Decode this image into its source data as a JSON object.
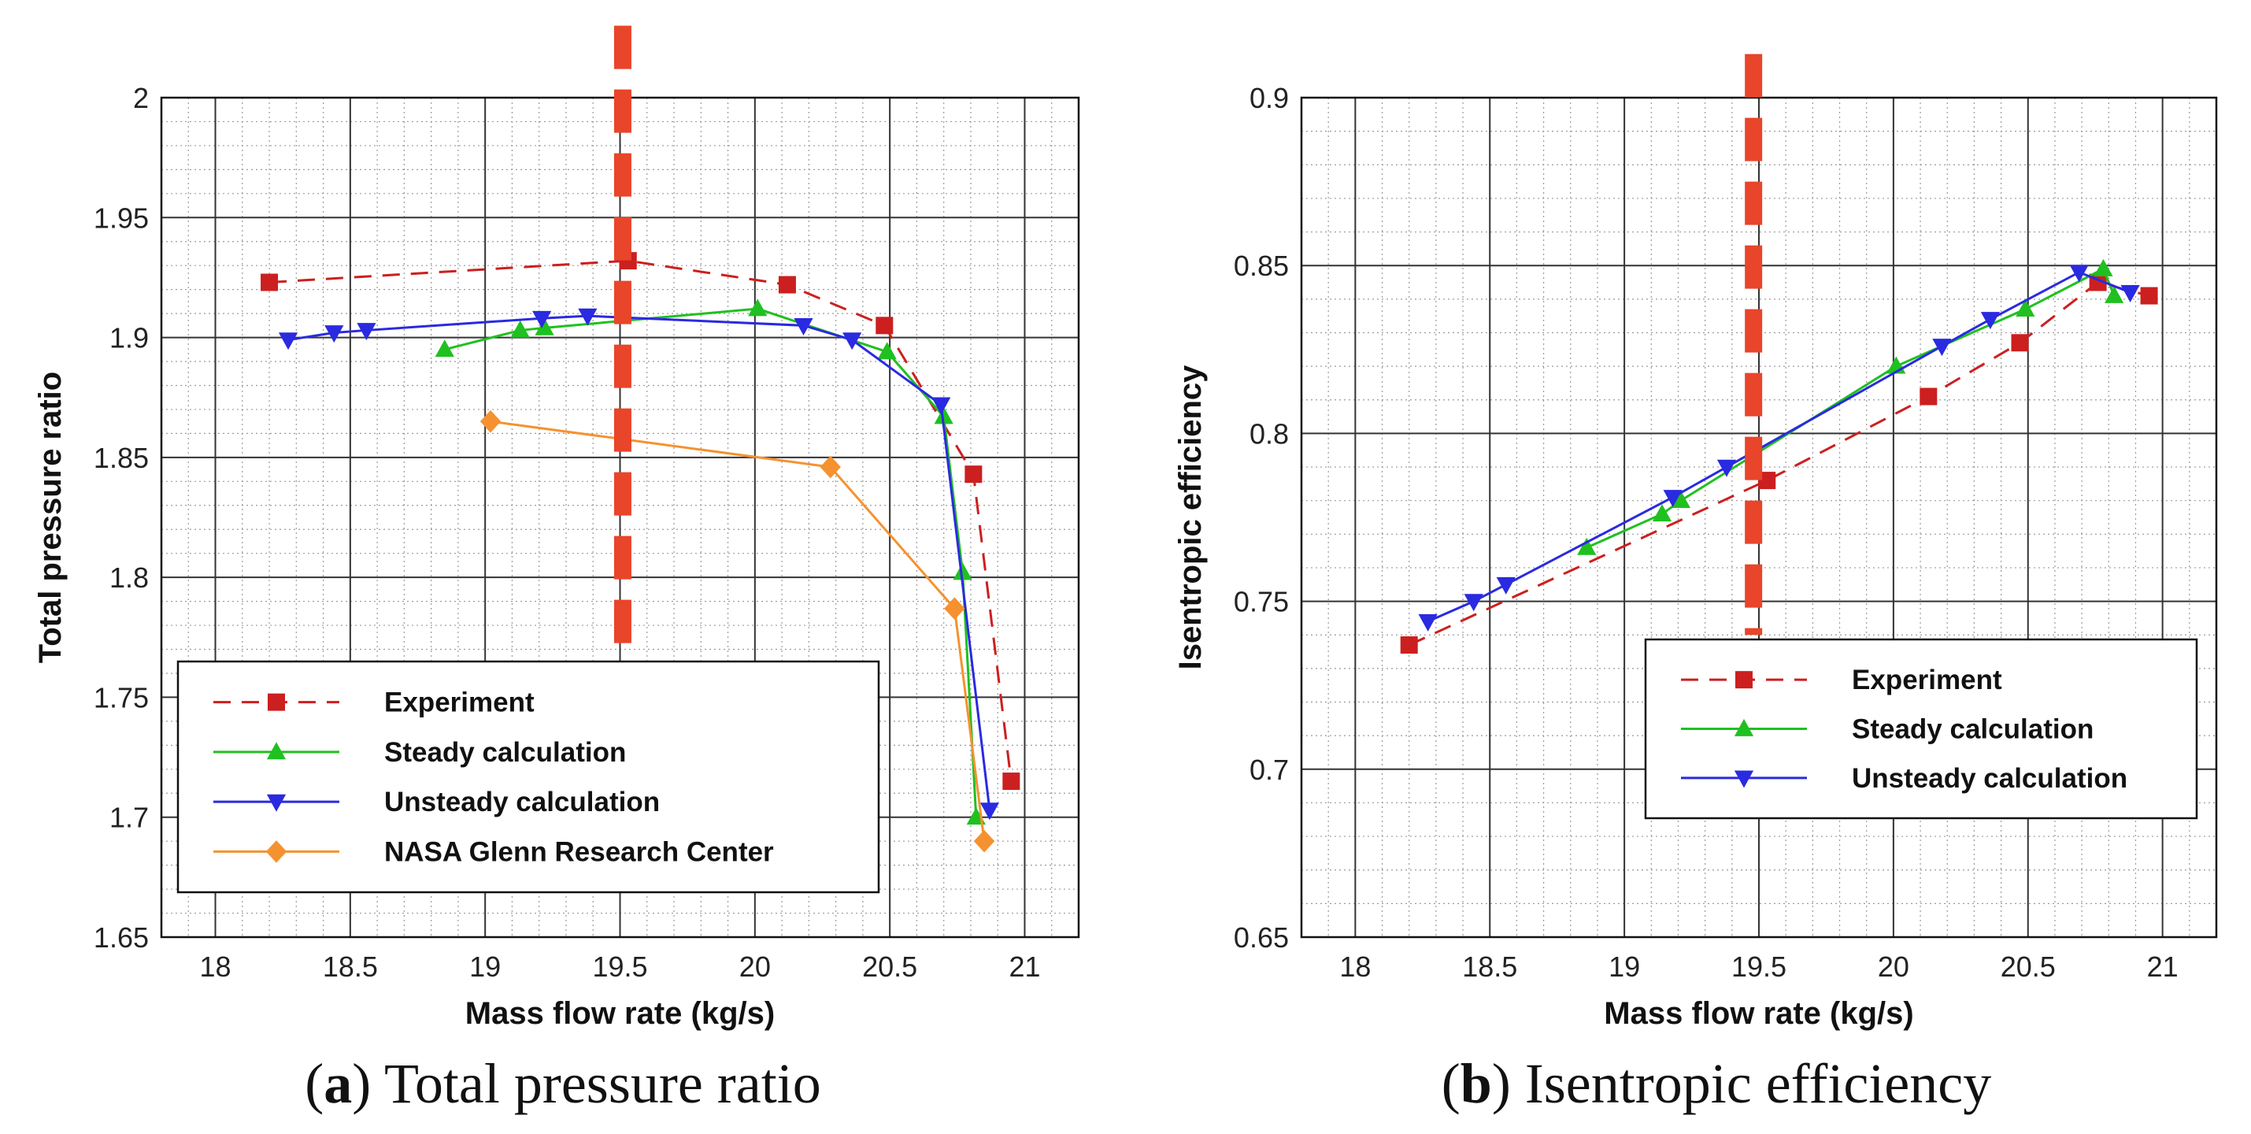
{
  "chart_data": [
    {
      "type": "line",
      "panel_letter": "a",
      "caption": "Total pressure ratio",
      "xlabel": "Mass flow rate (kg/s)",
      "ylabel": "Total pressure ratio",
      "xlim": [
        17.8,
        21.2
      ],
      "ylim": [
        1.65,
        2.0
      ],
      "xticks": [
        18,
        18.5,
        19,
        19.5,
        20,
        20.5,
        21
      ],
      "yticks": [
        1.65,
        1.7,
        1.75,
        1.8,
        1.85,
        1.9,
        1.95,
        2
      ],
      "xtick_labels": [
        "18",
        "18.5",
        "19",
        "19.5",
        "20",
        "20.5",
        "21"
      ],
      "ytick_labels": [
        "1.65",
        "1.7",
        "1.75",
        "1.8",
        "1.85",
        "1.9",
        "1.95",
        "2"
      ],
      "grid": true,
      "vline": {
        "x": 19.51,
        "y_from": 1.77,
        "y_to": 2.03,
        "color": "#e8452a"
      },
      "legend_position": "bottom-left",
      "series": [
        {
          "name": "Experiment",
          "color": "#cc1f1f",
          "marker": "square",
          "dashed": true,
          "x": [
            18.2,
            19.53,
            20.12,
            20.48,
            20.81,
            20.95
          ],
          "y": [
            1.923,
            1.932,
            1.922,
            1.905,
            1.843,
            1.715
          ]
        },
        {
          "name": "Steady calculation",
          "color": "#20c020",
          "marker": "triangle-up",
          "dashed": false,
          "x": [
            18.85,
            19.13,
            19.22,
            20.01,
            20.49,
            20.7,
            20.77,
            20.82
          ],
          "y": [
            1.895,
            1.903,
            1.904,
            1.912,
            1.894,
            1.867,
            1.802,
            1.7
          ]
        },
        {
          "name": "Unsteady calculation",
          "color": "#2a2ae0",
          "marker": "triangle-down",
          "dashed": false,
          "x": [
            18.27,
            18.44,
            18.56,
            19.21,
            19.38,
            20.18,
            20.36,
            20.69,
            20.87
          ],
          "y": [
            1.899,
            1.902,
            1.903,
            1.908,
            1.909,
            1.905,
            1.899,
            1.872,
            1.703
          ]
        },
        {
          "name": "NASA Glenn Research Center",
          "color": "#f5922f",
          "marker": "diamond",
          "dashed": false,
          "x": [
            19.02,
            20.28,
            20.74,
            20.85
          ],
          "y": [
            1.865,
            1.846,
            1.787,
            1.69
          ]
        }
      ]
    },
    {
      "type": "line",
      "panel_letter": "b",
      "caption": "Isentropic efficiency",
      "xlabel": "Mass flow rate (kg/s)",
      "ylabel": "Isentropic efficiency",
      "xlim": [
        17.8,
        21.2
      ],
      "ylim": [
        0.65,
        0.9
      ],
      "xticks": [
        18,
        18.5,
        19,
        19.5,
        20,
        20.5,
        21
      ],
      "yticks": [
        0.65,
        0.7,
        0.75,
        0.8,
        0.85,
        0.9
      ],
      "xtick_labels": [
        "18",
        "18.5",
        "19",
        "19.5",
        "20",
        "20.5",
        "21"
      ],
      "ytick_labels": [
        "0.65",
        "0.7",
        "0.75",
        "0.8",
        "0.85",
        "0.9"
      ],
      "grid": true,
      "vline": {
        "x": 19.48,
        "y_from": 0.74,
        "y_to": 0.913,
        "color": "#e8452a"
      },
      "legend_position": "bottom-right",
      "series": [
        {
          "name": "Experiment",
          "color": "#cc1f1f",
          "marker": "square",
          "dashed": true,
          "x": [
            18.2,
            19.53,
            20.13,
            20.47,
            20.76,
            20.95
          ],
          "y": [
            0.737,
            0.786,
            0.811,
            0.827,
            0.845,
            0.841
          ]
        },
        {
          "name": "Steady calculation",
          "color": "#20c020",
          "marker": "triangle-up",
          "dashed": false,
          "x": [
            18.86,
            19.14,
            19.21,
            20.01,
            20.49,
            20.78,
            20.82
          ],
          "y": [
            0.766,
            0.776,
            0.78,
            0.82,
            0.837,
            0.849,
            0.841
          ]
        },
        {
          "name": "Unsteady calculation",
          "color": "#2a2ae0",
          "marker": "triangle-down",
          "dashed": false,
          "x": [
            18.27,
            18.44,
            18.56,
            19.18,
            19.38,
            20.18,
            20.36,
            20.69,
            20.88
          ],
          "y": [
            0.744,
            0.75,
            0.755,
            0.781,
            0.79,
            0.826,
            0.834,
            0.848,
            0.842
          ]
        }
      ]
    }
  ]
}
